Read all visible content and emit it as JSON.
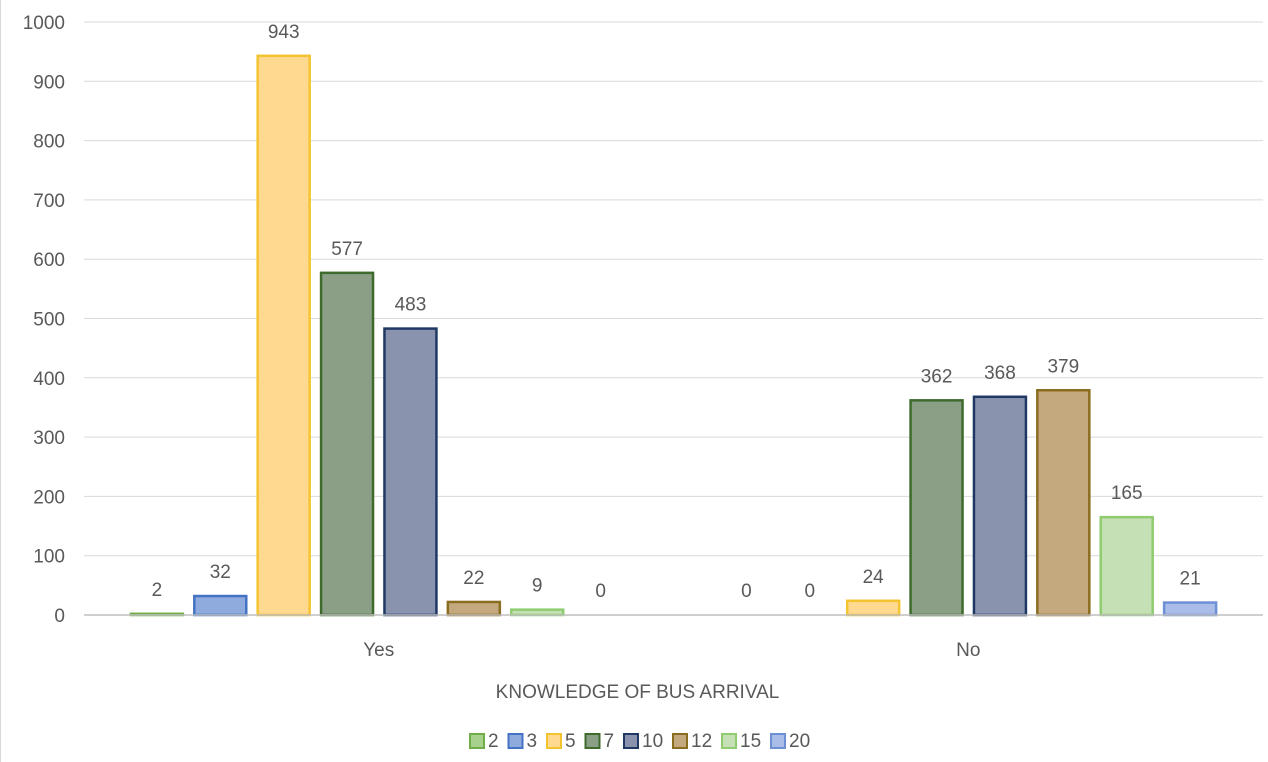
{
  "chart_data": {
    "type": "bar",
    "title": "",
    "xlabel": "KNOWLEDGE OF BUS ARRIVAL",
    "ylabel": "",
    "categories": [
      "Yes",
      "No"
    ],
    "ylim": [
      0,
      1000
    ],
    "yticks": [
      0,
      100,
      200,
      300,
      400,
      500,
      600,
      700,
      800,
      900,
      1000
    ],
    "grid": true,
    "legend_position": "bottom",
    "series": [
      {
        "name": "2",
        "values": [
          2,
          0
        ],
        "fill": "#a9d18e",
        "stroke": "#70ad47"
      },
      {
        "name": "3",
        "values": [
          32,
          0
        ],
        "fill": "#8faadc",
        "stroke": "#4472c4"
      },
      {
        "name": "5",
        "values": [
          943,
          24
        ],
        "fill": "#ffd98f",
        "stroke": "#f4c430"
      },
      {
        "name": "7",
        "values": [
          577,
          362
        ],
        "fill": "#8a9f86",
        "stroke": "#3e6b2c"
      },
      {
        "name": "10",
        "values": [
          483,
          368
        ],
        "fill": "#8a93ad",
        "stroke": "#1f3864"
      },
      {
        "name": "12",
        "values": [
          22,
          379
        ],
        "fill": "#c4a97f",
        "stroke": "#8b6d1f"
      },
      {
        "name": "15",
        "values": [
          9,
          165
        ],
        "fill": "#c5e0b4",
        "stroke": "#8fcc6f"
      },
      {
        "name": "20",
        "values": [
          0,
          21
        ],
        "fill": "#a9bde8",
        "stroke": "#6d8fd6"
      }
    ]
  }
}
